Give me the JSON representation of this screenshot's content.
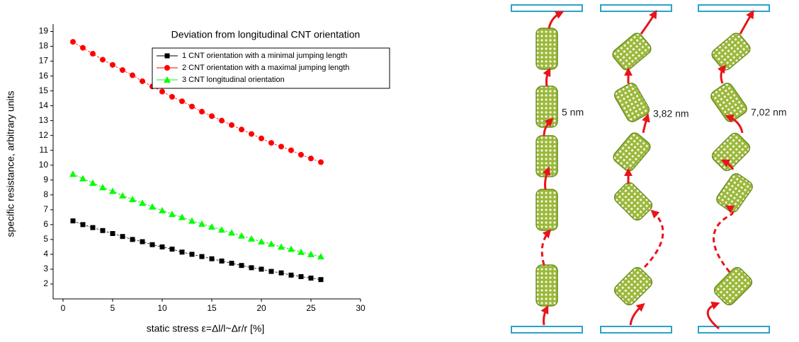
{
  "chart_data": {
    "type": "line",
    "title": "Deviation from longitudinal CNT orientation",
    "x_label": "static stress ε=Δl/l~Δr/r [%]",
    "y_label": "specific resistance, arbitrary units",
    "x": [
      1,
      2,
      3,
      4,
      5,
      6,
      7,
      8,
      9,
      10,
      11,
      12,
      13,
      14,
      15,
      16,
      17,
      18,
      19,
      20,
      21,
      22,
      23,
      24,
      25,
      26
    ],
    "series": [
      {
        "name": "1 CNT orientation with a minimal jumping length",
        "color": "#000000",
        "marker": "square",
        "values": [
          6.25,
          6.0,
          5.8,
          5.6,
          5.4,
          5.2,
          5.0,
          4.85,
          4.65,
          4.5,
          4.35,
          4.15,
          4.0,
          3.85,
          3.7,
          3.55,
          3.4,
          3.25,
          3.1,
          3.0,
          2.85,
          2.75,
          2.6,
          2.5,
          2.4,
          2.3
        ]
      },
      {
        "name": "2 CNT orientation with a maximal jumping length",
        "color": "#ff0000",
        "marker": "circle",
        "values": [
          18.3,
          17.9,
          17.5,
          17.1,
          16.75,
          16.4,
          16.05,
          15.65,
          15.3,
          14.95,
          14.6,
          14.3,
          13.95,
          13.6,
          13.3,
          13.0,
          12.7,
          12.4,
          12.1,
          11.8,
          11.5,
          11.25,
          11.0,
          10.7,
          10.45,
          10.2
        ]
      },
      {
        "name": "3 CNT longitudinal orientation",
        "color": "#00ff00",
        "marker": "triangle",
        "values": [
          9.4,
          9.1,
          8.8,
          8.5,
          8.25,
          7.95,
          7.7,
          7.45,
          7.2,
          6.95,
          6.7,
          6.5,
          6.25,
          6.05,
          5.85,
          5.65,
          5.45,
          5.25,
          5.05,
          4.85,
          4.7,
          4.5,
          4.35,
          4.15,
          4.0,
          3.85
        ]
      }
    ],
    "xlim": [
      -1,
      30
    ],
    "xticks": [
      0,
      5,
      10,
      15,
      20,
      25,
      30
    ],
    "ylim": [
      1,
      19.5
    ],
    "yticks": [
      2,
      3,
      4,
      5,
      6,
      7,
      8,
      9,
      10,
      11,
      12,
      13,
      14,
      15,
      16,
      17,
      18,
      19
    ],
    "grid": false
  },
  "diagram": {
    "labels": [
      "5 nm",
      "3,82 nm",
      "7,02 nm"
    ]
  }
}
